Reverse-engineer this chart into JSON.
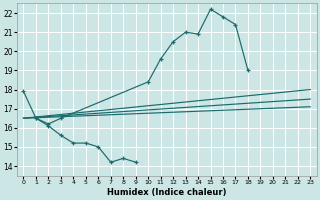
{
  "xlabel": "Humidex (Indice chaleur)",
  "xlim": [
    -0.5,
    23.5
  ],
  "ylim": [
    13.5,
    22.5
  ],
  "yticks": [
    14,
    15,
    16,
    17,
    18,
    19,
    20,
    21,
    22
  ],
  "xticks": [
    0,
    1,
    2,
    3,
    4,
    5,
    6,
    7,
    8,
    9,
    10,
    11,
    12,
    13,
    14,
    15,
    16,
    17,
    18,
    19,
    20,
    21,
    22,
    23
  ],
  "bg_color": "#cce5e5",
  "grid_color": "#ffffff",
  "line_color": "#1a6b6b",
  "line1_x": [
    0,
    1,
    2,
    3,
    4,
    5,
    6,
    7,
    8,
    9
  ],
  "line1_y": [
    17.9,
    16.5,
    16.1,
    15.6,
    15.2,
    15.2,
    15.0,
    14.2,
    14.4,
    14.2
  ],
  "line2_x": [
    1,
    2,
    3,
    10,
    11,
    12,
    13,
    14,
    15,
    16,
    17,
    18
  ],
  "line2_y": [
    16.5,
    16.2,
    16.5,
    18.4,
    19.6,
    20.5,
    21.0,
    20.9,
    22.2,
    21.8,
    21.4,
    19.0
  ],
  "line3_x": [
    0,
    23
  ],
  "line3_y": [
    16.5,
    18.0
  ],
  "line4_x": [
    0,
    23
  ],
  "line4_y": [
    16.5,
    17.5
  ],
  "line5_x": [
    0,
    23
  ],
  "line5_y": [
    16.5,
    17.1
  ]
}
